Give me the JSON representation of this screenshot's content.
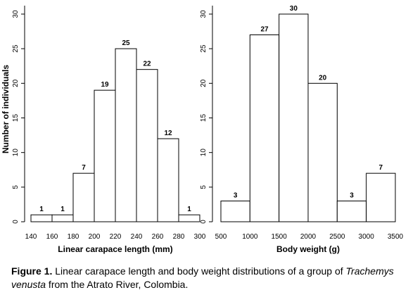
{
  "chart_data": [
    {
      "type": "histogram",
      "bin_edges": [
        140,
        160,
        180,
        200,
        220,
        240,
        260,
        280,
        300
      ],
      "x_tick_labels": [
        "140",
        "160",
        "180",
        "200",
        "220",
        "240",
        "260",
        "280",
        "300"
      ],
      "values": [
        1,
        1,
        7,
        19,
        25,
        22,
        12,
        1
      ],
      "data_labels": [
        "1",
        "1",
        "7",
        "19",
        "25",
        "22",
        "12",
        "1"
      ],
      "xlabel": "Linear carapace length (mm)",
      "ylabel": "Number of individuals",
      "ylim": [
        0,
        30
      ],
      "y_ticks": [
        "0",
        "5",
        "10",
        "15",
        "20",
        "25",
        "30"
      ]
    },
    {
      "type": "histogram",
      "bin_edges": [
        500,
        1000,
        1500,
        2000,
        2500,
        3000,
        3500
      ],
      "x_tick_labels": [
        "500",
        "1000",
        "1500",
        "2000",
        "2500",
        "3000",
        "3500"
      ],
      "values": [
        3,
        27,
        30,
        20,
        3,
        7
      ],
      "data_labels": [
        "3",
        "27",
        "30",
        "20",
        "3",
        "7"
      ],
      "xlabel": "Body weight (g)",
      "ylabel": "",
      "ylim": [
        0,
        30
      ],
      "y_ticks": [
        "0",
        "5",
        "10",
        "15",
        "20",
        "25",
        "30"
      ]
    }
  ],
  "caption": {
    "label": "Figure 1.",
    "text_before": " Linear carapace length and body weight distributions of a group of ",
    "species": "Trachemys venusta",
    "text_after": " from the Atrato River, Colombia."
  }
}
